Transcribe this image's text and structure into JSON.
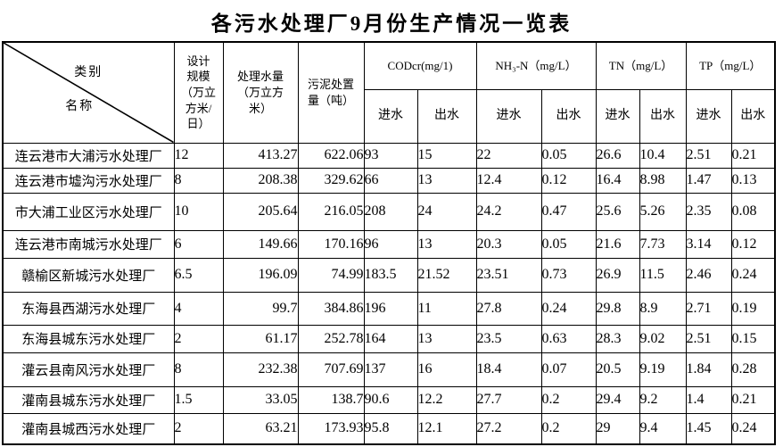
{
  "title": "各污水处理厂9月份生产情况一览表",
  "table": {
    "corner": {
      "category": "类别",
      "name": "名称"
    },
    "headers": {
      "design_scale": "设计\n规模\n（万立\n方米/\n日）",
      "treated_water": "处理水量\n（万立方\n米）",
      "sludge": "污泥处置\n量（吨）",
      "codcr": "CODcr(mg/1)",
      "nh3n": "NH₃-N（mg/L）",
      "tn": "TN（mg/L）",
      "tp": "TP（mg/L）"
    },
    "subheaders": {
      "influent": "进水",
      "effluent": "出水"
    },
    "rows": [
      {
        "name": "连云港市大浦污水处理厂",
        "values": [
          "12",
          "413.27",
          "622.06",
          "93",
          "15",
          "22",
          "0.05",
          "26.6",
          "10.4",
          "2.51",
          "0.21"
        ]
      },
      {
        "name": "连云港市墟沟污水处理厂",
        "values": [
          "8",
          "208.38",
          "329.62",
          "66",
          "13",
          "12.4",
          "0.12",
          "16.4",
          "8.98",
          "1.47",
          "0.13"
        ]
      },
      {
        "name": "市大浦工业区污水处理厂",
        "values": [
          "10",
          "205.64",
          "216.05",
          "208",
          "24",
          "24.2",
          "0.47",
          "25.6",
          "5.26",
          "2.35",
          "0.08"
        ]
      },
      {
        "name": "连云港市南城污水处理厂",
        "values": [
          "6",
          "149.66",
          "170.16",
          "96",
          "13",
          "20.3",
          "0.05",
          "21.6",
          "7.73",
          "3.14",
          "0.12"
        ]
      },
      {
        "name": "赣榆区新城污水处理厂",
        "values": [
          "6.5",
          "196.09",
          "74.99",
          "183.5",
          "21.52",
          "23.51",
          "0.73",
          "26.9",
          "11.5",
          "2.46",
          "0.24"
        ]
      },
      {
        "name": "东海县西湖污水处理厂",
        "values": [
          "4",
          "99.7",
          "384.86",
          "196",
          "11",
          "27.8",
          "0.24",
          "29.8",
          "8.9",
          "2.71",
          "0.19"
        ]
      },
      {
        "name": "东海县城东污水处理厂",
        "values": [
          "2",
          "61.17",
          "252.78",
          "164",
          "13",
          "23.5",
          "0.63",
          "28.3",
          "9.02",
          "2.51",
          "0.15"
        ]
      },
      {
        "name": "灌云县南风污水处理厂",
        "values": [
          "8",
          "232.38",
          "707.69",
          "137",
          "16",
          "18.4",
          "0.07",
          "20.5",
          "9.19",
          "1.84",
          "0.28"
        ]
      },
      {
        "name": "灌南县城东污水处理厂",
        "values": [
          "1.5",
          "33.05",
          "138.7",
          "90.6",
          "12.2",
          "27.7",
          "0.2",
          "29.4",
          "9.2",
          "1.4",
          "0.21"
        ]
      },
      {
        "name": "灌南县城西污水处理厂",
        "values": [
          "2",
          "63.21",
          "173.93",
          "95.8",
          "12.1",
          "27.2",
          "0.2",
          "29",
          "9.4",
          "1.45",
          "0.24"
        ]
      }
    ]
  }
}
